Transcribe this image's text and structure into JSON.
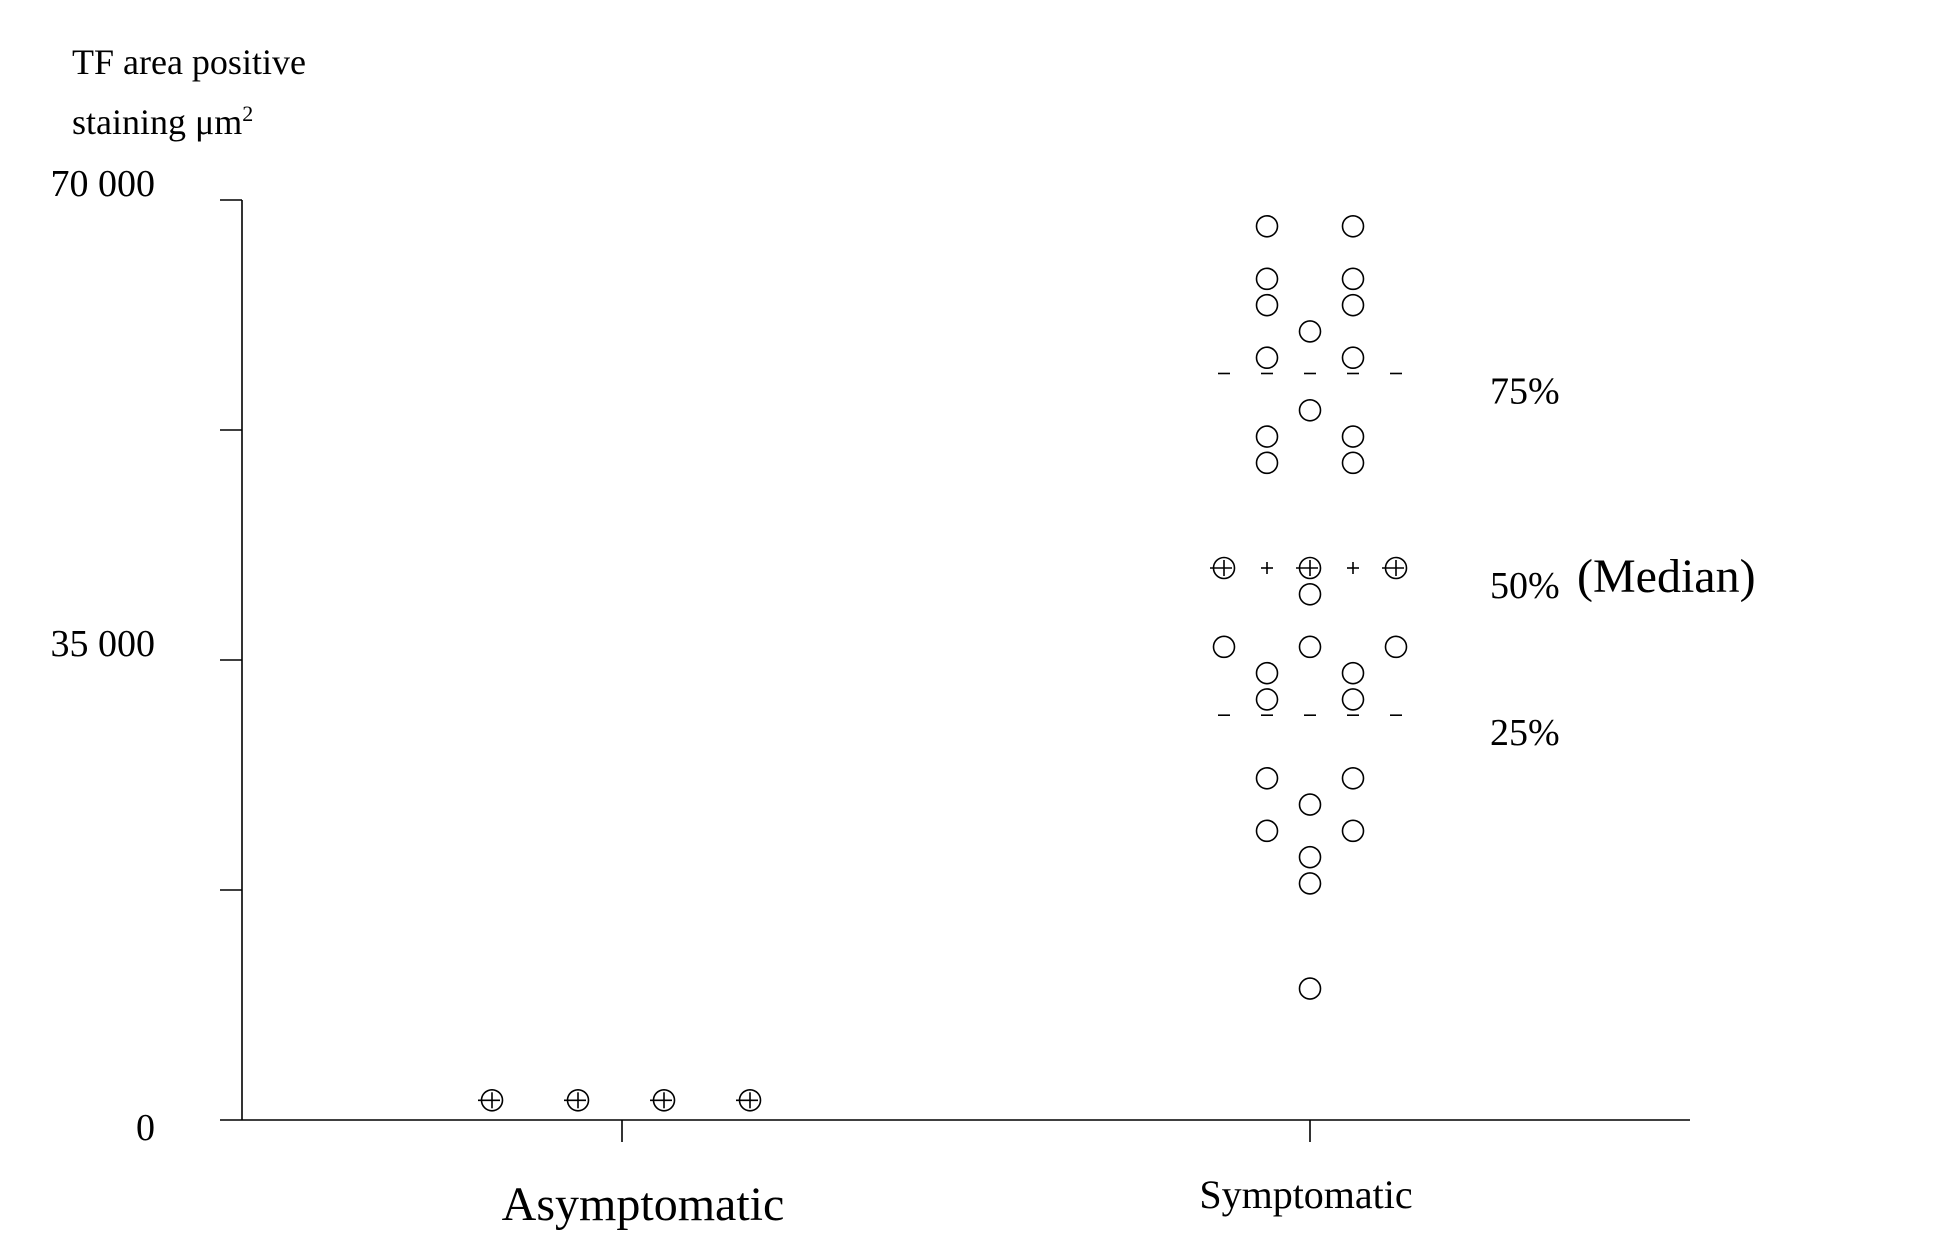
{
  "chart_data": {
    "type": "scatter",
    "ylabel": {
      "line1": "TF area positive",
      "line2": "staining μm",
      "exponent": "2"
    },
    "ylim": [
      0,
      70000
    ],
    "y_tick_labels": [
      {
        "value": 0,
        "label": "0"
      },
      {
        "value": 35000,
        "label": "35 000"
      },
      {
        "value": 70000,
        "label": "70 000"
      }
    ],
    "y_minor_ticks": [
      17500,
      52500
    ],
    "grid": false,
    "categories": [
      "Asymptomatic",
      "Symptomatic"
    ],
    "groups": [
      {
        "category": "Asymptomatic",
        "median": 1500,
        "points": [
          {
            "y": 1500,
            "n": 4
          }
        ]
      },
      {
        "category": "Symptomatic",
        "points": [
          {
            "y": 68000,
            "n": 2
          },
          {
            "y": 64000,
            "n": 2
          },
          {
            "y": 62000,
            "n": 2
          },
          {
            "y": 60000,
            "n": 1
          },
          {
            "y": 58000,
            "n": 2
          },
          {
            "y": 54000,
            "n": 1
          },
          {
            "y": 52000,
            "n": 2
          },
          {
            "y": 50000,
            "n": 2
          },
          {
            "y": 42000,
            "n": 3
          },
          {
            "y": 40000,
            "n": 1
          },
          {
            "y": 36000,
            "n": 3
          },
          {
            "y": 34000,
            "n": 2
          },
          {
            "y": 32000,
            "n": 2
          },
          {
            "y": 26000,
            "n": 2
          },
          {
            "y": 24000,
            "n": 1
          },
          {
            "y": 22000,
            "n": 2
          },
          {
            "y": 20000,
            "n": 1
          },
          {
            "y": 18000,
            "n": 1
          },
          {
            "y": 10000,
            "n": 1
          }
        ],
        "percentiles": [
          {
            "label": "75%",
            "value": 56800,
            "style": "dash"
          },
          {
            "label": "50%",
            "suffix": "(Median)",
            "value": 42000,
            "style": "plus"
          },
          {
            "label": "25%",
            "value": 30800,
            "style": "dash"
          }
        ]
      }
    ]
  }
}
